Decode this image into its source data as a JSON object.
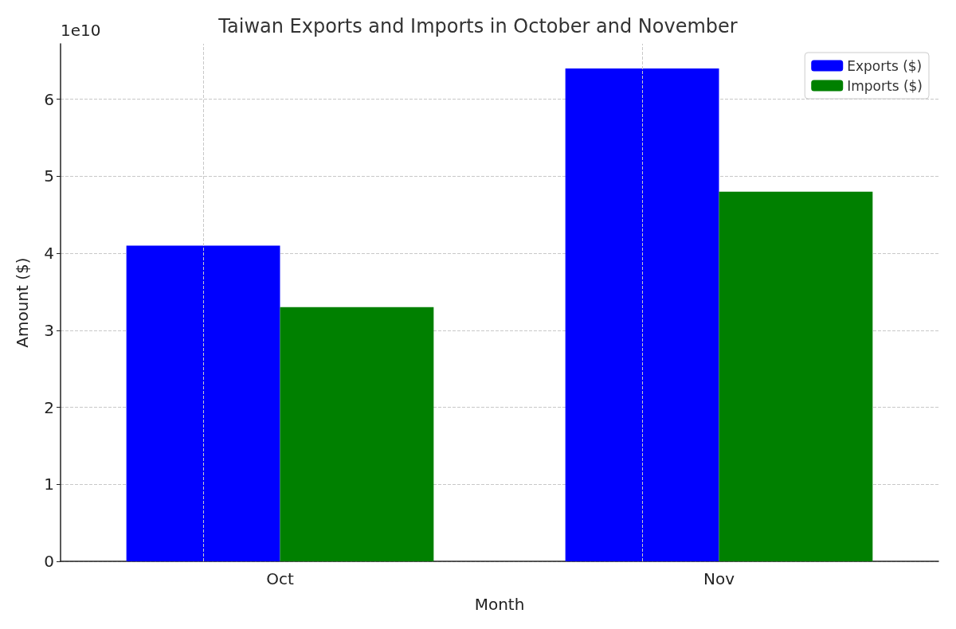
{
  "chart_data": {
    "type": "bar",
    "title": "Taiwan Exports and Imports in October and November",
    "xlabel": "Month",
    "ylabel": "Amount ($)",
    "annotations": [
      "1e10"
    ],
    "categories": [
      "Oct",
      "Nov"
    ],
    "series": [
      {
        "name": "Exports ($)",
        "color": "#0000ff",
        "values": [
          4.1,
          6.4
        ]
      },
      {
        "name": "Imports ($)",
        "color": "#008000",
        "values": [
          3.3,
          4.8
        ]
      }
    ],
    "ylim": [
      0,
      6.72
    ],
    "yticks": [
      0,
      1,
      2,
      3,
      4,
      5,
      6
    ],
    "grid": true,
    "legend": "top right"
  }
}
